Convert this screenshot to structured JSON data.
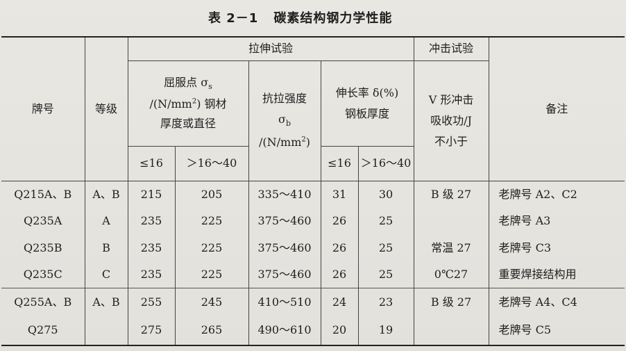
{
  "title": {
    "number": "表 2－1",
    "text": "碳素结构钢力学性能"
  },
  "headers": {
    "grade": "牌号",
    "level": "等级",
    "tensile_test": "拉伸试验",
    "yield_line1": "屈服点 σ",
    "yield_sub": "s",
    "yield_line2a": "/(N/mm",
    "yield_line2b": ") 钢材",
    "yield_line3": "厚度或直径",
    "tensile_strength": "抗拉强度",
    "tensile_sigma": "σ",
    "tensile_sub": "b",
    "tensile_unit_a": "/(N/mm",
    "tensile_unit_b": ")",
    "elong_line1": "伸长率 δ(%)",
    "elong_line2": "钢板厚度",
    "impact_test": "冲击试验",
    "impact_line1": "V 形冲击",
    "impact_line2": "吸收功/J",
    "impact_line3": "不小于",
    "remarks": "备注",
    "sq": "2",
    "col_le16": "≤16",
    "col_16_40": "＞16～40",
    "col_le16_b": "≤16",
    "col_16_40_b": "＞16～40"
  },
  "rows": [
    {
      "grade": "Q215A、B",
      "level": "A、B",
      "y1": "215",
      "y2": "205",
      "ts": "335～410",
      "e1": "31",
      "e2": "30",
      "impact": "B 级 27",
      "note": "老牌号 A2、C2"
    },
    {
      "grade": "Q235A",
      "level": "A",
      "y1": "235",
      "y2": "225",
      "ts": "375～460",
      "e1": "26",
      "e2": "25",
      "impact": "",
      "note": "老牌号 A3"
    },
    {
      "grade": "Q235B",
      "level": "B",
      "y1": "235",
      "y2": "225",
      "ts": "375～460",
      "e1": "26",
      "e2": "25",
      "impact": "常温 27",
      "note": "老牌号 C3"
    },
    {
      "grade": "Q235C",
      "level": "C",
      "y1": "235",
      "y2": "225",
      "ts": "375～460",
      "e1": "26",
      "e2": "25",
      "impact": "0℃27",
      "note": "重要焊接结构用"
    },
    {
      "grade": "Q255A、B",
      "level": "A、B",
      "y1": "255",
      "y2": "245",
      "ts": "410～510",
      "e1": "24",
      "e2": "23",
      "impact": "B 级 27",
      "note": "老牌号 A4、C4"
    },
    {
      "grade": "Q275",
      "level": "",
      "y1": "275",
      "y2": "265",
      "ts": "490～610",
      "e1": "20",
      "e2": "19",
      "impact": "",
      "note": "老牌号 C5"
    }
  ]
}
